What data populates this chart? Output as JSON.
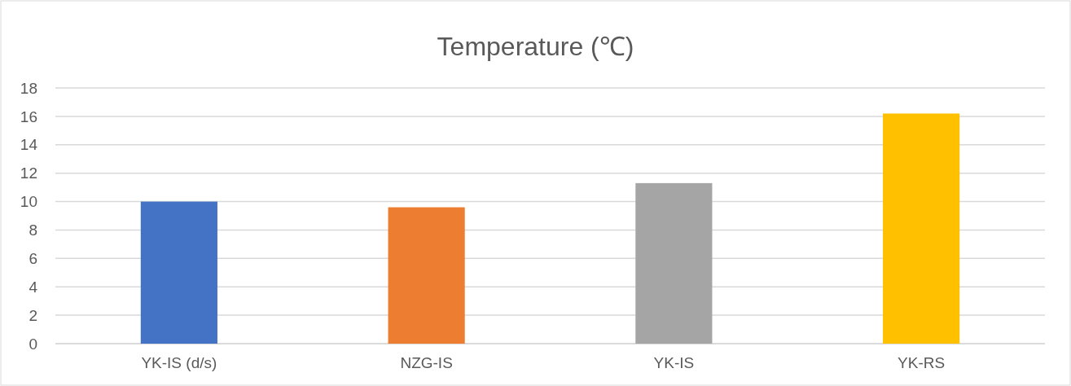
{
  "chart_data": {
    "type": "bar",
    "title": "Temperature (℃)",
    "categories": [
      "YK-IS (d/s)",
      "NZG-IS",
      "YK-IS",
      "YK-RS"
    ],
    "values": [
      10,
      9.6,
      11.3,
      16.2
    ],
    "colors": [
      "#4472c4",
      "#ed7d31",
      "#a5a5a5",
      "#ffc000"
    ],
    "ylim": [
      0,
      18
    ],
    "yticks": [
      0,
      2,
      4,
      6,
      8,
      10,
      12,
      14,
      16,
      18
    ],
    "grid": "y",
    "legend": false
  }
}
